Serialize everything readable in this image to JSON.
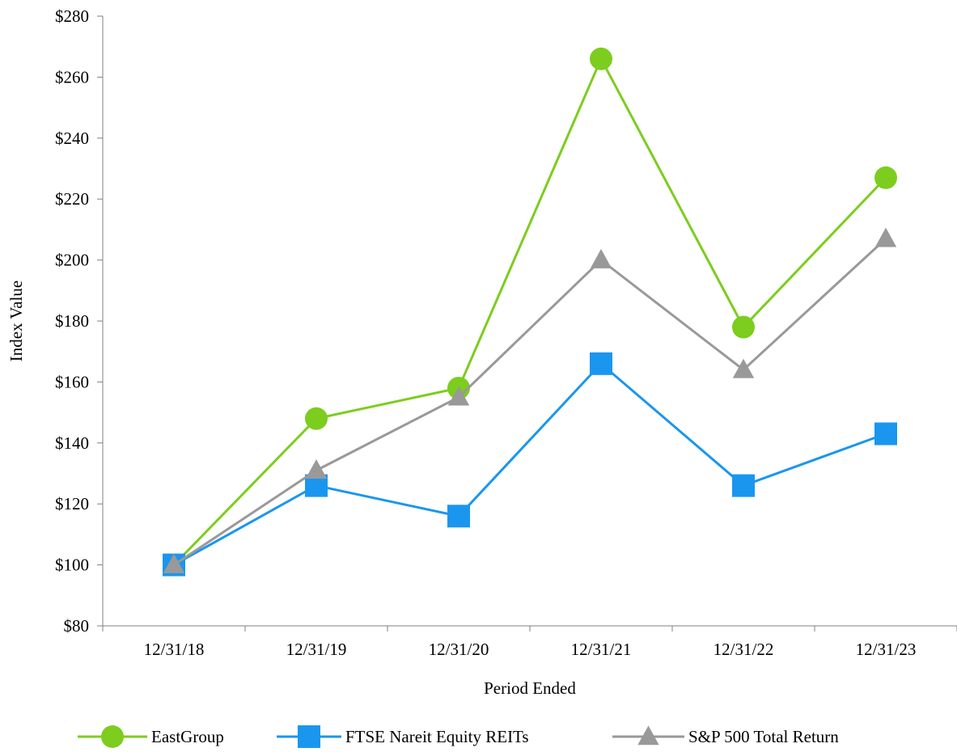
{
  "chart_data": {
    "type": "line",
    "title": "",
    "xlabel": "Period Ended",
    "ylabel": "Index Value",
    "categories": [
      "12/31/18",
      "12/31/19",
      "12/31/20",
      "12/31/21",
      "12/31/22",
      "12/31/23"
    ],
    "ylim": [
      80,
      280
    ],
    "y_ticks": [
      80,
      100,
      120,
      140,
      160,
      180,
      200,
      220,
      240,
      260,
      280
    ],
    "y_tick_labels": [
      "$80",
      "$100",
      "$120",
      "$140",
      "$160",
      "$180",
      "$200",
      "$220",
      "$240",
      "$260",
      "$280"
    ],
    "grid": false,
    "legend_position": "bottom",
    "series": [
      {
        "name": "EastGroup",
        "marker": "circle",
        "color": "#7ccd1e",
        "values": [
          100,
          148,
          158,
          266,
          178,
          227
        ]
      },
      {
        "name": "FTSE Nareit Equity REITs",
        "marker": "square",
        "color": "#1a96ef",
        "values": [
          100,
          126,
          116,
          166,
          126,
          143
        ]
      },
      {
        "name": "S&P 500 Total Return",
        "marker": "triangle",
        "color": "#999999",
        "values": [
          100,
          131,
          155,
          200,
          164,
          207
        ]
      }
    ]
  }
}
